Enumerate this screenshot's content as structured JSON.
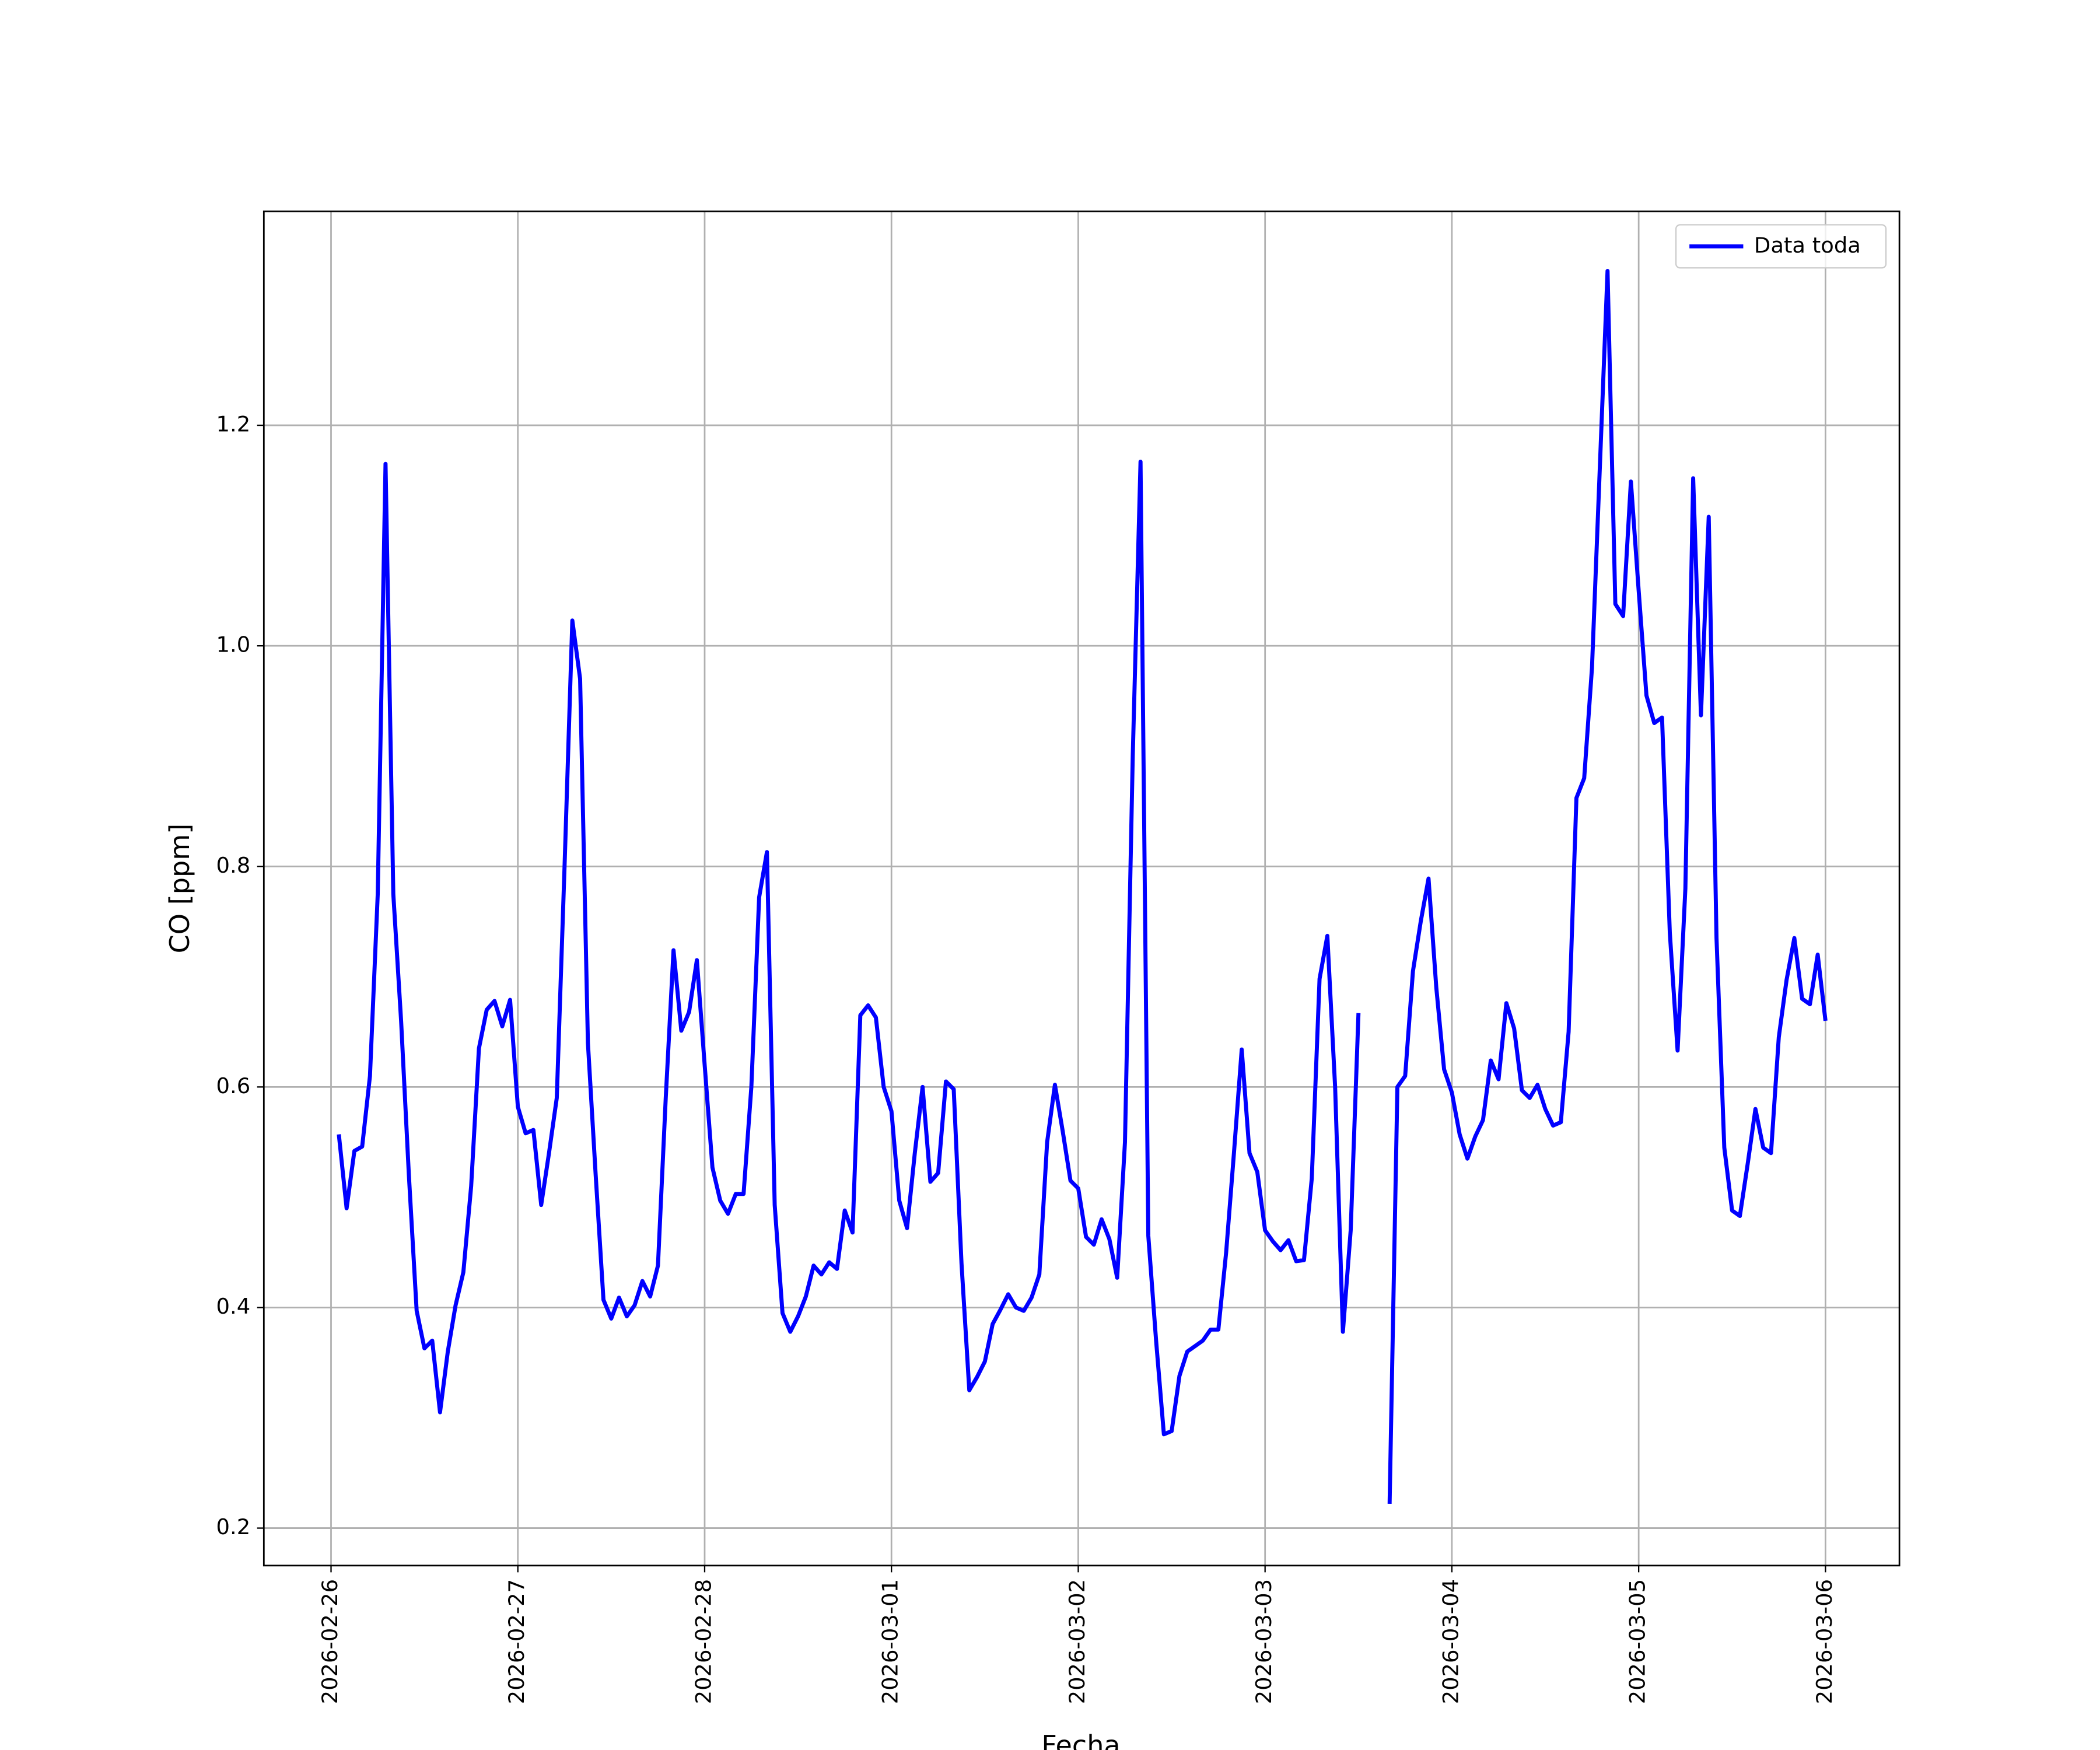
{
  "chart_data": {
    "type": "line",
    "xlabel": "Fecha",
    "ylabel": "CO [ppm]",
    "x": [
      "2026-02-26 01:00",
      "2026-02-26 02:00",
      "2026-02-26 03:00",
      "2026-02-26 04:00",
      "2026-02-26 05:00",
      "2026-02-26 06:00",
      "2026-02-26 07:00",
      "2026-02-26 08:00",
      "2026-02-26 09:00",
      "2026-02-26 10:00",
      "2026-02-26 11:00",
      "2026-02-26 12:00",
      "2026-02-26 13:00",
      "2026-02-26 14:00",
      "2026-02-26 15:00",
      "2026-02-26 16:00",
      "2026-02-26 17:00",
      "2026-02-26 18:00",
      "2026-02-26 19:00",
      "2026-02-26 20:00",
      "2026-02-26 21:00",
      "2026-02-26 22:00",
      "2026-02-26 23:00",
      "2026-02-27 00:00",
      "2026-02-27 01:00",
      "2026-02-27 02:00",
      "2026-02-27 03:00",
      "2026-02-27 04:00",
      "2026-02-27 05:00",
      "2026-02-27 06:00",
      "2026-02-27 07:00",
      "2026-02-27 08:00",
      "2026-02-27 09:00",
      "2026-02-27 10:00",
      "2026-02-27 11:00",
      "2026-02-27 12:00",
      "2026-02-27 13:00",
      "2026-02-27 14:00",
      "2026-02-27 15:00",
      "2026-02-27 16:00",
      "2026-02-27 17:00",
      "2026-02-27 18:00",
      "2026-02-27 19:00",
      "2026-02-27 20:00",
      "2026-02-27 21:00",
      "2026-02-27 22:00",
      "2026-02-27 23:00",
      "2026-02-28 00:00",
      "2026-02-28 01:00",
      "2026-02-28 02:00",
      "2026-02-28 03:00",
      "2026-02-28 04:00",
      "2026-02-28 05:00",
      "2026-02-28 06:00",
      "2026-02-28 07:00",
      "2026-02-28 08:00",
      "2026-02-28 09:00",
      "2026-02-28 10:00",
      "2026-02-28 11:00",
      "2026-02-28 12:00",
      "2026-02-28 13:00",
      "2026-02-28 14:00",
      "2026-02-28 15:00",
      "2026-02-28 16:00",
      "2026-02-28 17:00",
      "2026-02-28 18:00",
      "2026-02-28 19:00",
      "2026-02-28 20:00",
      "2026-02-28 21:00",
      "2026-02-28 22:00",
      "2026-02-28 23:00",
      "2026-03-01 00:00",
      "2026-03-01 01:00",
      "2026-03-01 02:00",
      "2026-03-01 03:00",
      "2026-03-01 04:00",
      "2026-03-01 05:00",
      "2026-03-01 06:00",
      "2026-03-01 07:00",
      "2026-03-01 08:00",
      "2026-03-01 09:00",
      "2026-03-01 10:00",
      "2026-03-01 11:00",
      "2026-03-01 12:00",
      "2026-03-01 13:00",
      "2026-03-01 14:00",
      "2026-03-01 15:00",
      "2026-03-01 16:00",
      "2026-03-01 17:00",
      "2026-03-01 18:00",
      "2026-03-01 19:00",
      "2026-03-01 20:00",
      "2026-03-01 21:00",
      "2026-03-01 22:00",
      "2026-03-01 23:00",
      "2026-03-02 00:00",
      "2026-03-02 01:00",
      "2026-03-02 02:00",
      "2026-03-02 03:00",
      "2026-03-02 04:00",
      "2026-03-02 05:00",
      "2026-03-02 06:00",
      "2026-03-02 07:00",
      "2026-03-02 08:00",
      "2026-03-02 09:00",
      "2026-03-02 10:00",
      "2026-03-02 11:00",
      "2026-03-02 12:00",
      "2026-03-02 13:00",
      "2026-03-02 14:00",
      "2026-03-02 15:00",
      "2026-03-02 16:00",
      "2026-03-02 17:00",
      "2026-03-02 18:00",
      "2026-03-02 19:00",
      "2026-03-02 20:00",
      "2026-03-02 21:00",
      "2026-03-02 22:00",
      "2026-03-02 23:00",
      "2026-03-03 00:00",
      "2026-03-03 01:00",
      "2026-03-03 02:00",
      "2026-03-03 03:00",
      "2026-03-03 04:00",
      "2026-03-03 05:00",
      "2026-03-03 06:00",
      "2026-03-03 07:00",
      "2026-03-03 08:00",
      "2026-03-03 09:00",
      "2026-03-03 10:00",
      "2026-03-03 11:00",
      "2026-03-03 12:00",
      "2026-03-03 13:00",
      "2026-03-03 14:00",
      "2026-03-03 15:00",
      "2026-03-03 16:00",
      "2026-03-03 17:00",
      "2026-03-03 18:00",
      "2026-03-03 19:00",
      "2026-03-03 20:00",
      "2026-03-03 21:00",
      "2026-03-03 22:00",
      "2026-03-03 23:00",
      "2026-03-04 00:00",
      "2026-03-04 01:00",
      "2026-03-04 02:00",
      "2026-03-04 03:00",
      "2026-03-04 04:00",
      "2026-03-04 05:00",
      "2026-03-04 06:00",
      "2026-03-04 07:00",
      "2026-03-04 08:00",
      "2026-03-04 09:00",
      "2026-03-04 10:00",
      "2026-03-04 11:00",
      "2026-03-04 12:00",
      "2026-03-04 13:00",
      "2026-03-04 14:00",
      "2026-03-04 15:00",
      "2026-03-04 16:00",
      "2026-03-04 17:00",
      "2026-03-04 18:00",
      "2026-03-04 19:00",
      "2026-03-04 20:00",
      "2026-03-04 21:00",
      "2026-03-04 22:00",
      "2026-03-04 23:00",
      "2026-03-05 00:00",
      "2026-03-05 01:00",
      "2026-03-05 02:00",
      "2026-03-05 03:00",
      "2026-03-05 04:00",
      "2026-03-05 05:00",
      "2026-03-05 06:00",
      "2026-03-05 07:00",
      "2026-03-05 08:00",
      "2026-03-05 09:00",
      "2026-03-05 10:00",
      "2026-03-05 11:00",
      "2026-03-05 12:00",
      "2026-03-05 13:00",
      "2026-03-05 14:00",
      "2026-03-05 15:00",
      "2026-03-05 16:00",
      "2026-03-05 17:00",
      "2026-03-05 18:00",
      "2026-03-05 19:00",
      "2026-03-05 20:00",
      "2026-03-05 21:00",
      "2026-03-05 22:00",
      "2026-03-05 23:00",
      "2026-03-06 00:00"
    ],
    "series": [
      {
        "name": "Data toda",
        "color": "#0000ff",
        "values": [
          0.557,
          0.49,
          0.542,
          0.546,
          0.61,
          0.775,
          1.165,
          0.775,
          0.66,
          0.52,
          0.397,
          0.363,
          0.37,
          0.305,
          0.36,
          0.402,
          0.432,
          0.51,
          0.635,
          0.67,
          0.678,
          0.655,
          0.679,
          0.582,
          0.558,
          0.561,
          0.493,
          0.54,
          0.59,
          0.8,
          1.023,
          0.97,
          0.64,
          0.52,
          0.407,
          0.39,
          0.409,
          0.392,
          0.402,
          0.424,
          0.41,
          0.438,
          0.59,
          0.724,
          0.651,
          0.668,
          0.715,
          0.62,
          0.527,
          0.497,
          0.485,
          0.503,
          0.503,
          0.6,
          0.772,
          0.813,
          0.493,
          0.395,
          0.378,
          0.392,
          0.41,
          0.438,
          0.43,
          0.441,
          0.435,
          0.488,
          0.468,
          0.665,
          0.674,
          0.663,
          0.6,
          0.578,
          0.497,
          0.472,
          0.54,
          0.6,
          0.514,
          0.522,
          0.605,
          0.598,
          0.44,
          0.325,
          0.337,
          0.351,
          0.385,
          0.398,
          0.412,
          0.4,
          0.397,
          0.409,
          0.43,
          0.55,
          0.602,
          0.56,
          0.515,
          0.508,
          0.464,
          0.457,
          0.48,
          0.462,
          0.427,
          0.55,
          0.9,
          1.167,
          0.465,
          0.37,
          0.285,
          0.288,
          0.338,
          0.36,
          0.365,
          0.37,
          0.38,
          0.38,
          0.45,
          0.54,
          0.634,
          0.54,
          0.523,
          0.47,
          0.46,
          0.452,
          0.461,
          0.442,
          0.443,
          0.517,
          0.698,
          0.737,
          0.6,
          0.378,
          0.47,
          0.667,
          null,
          null,
          null,
          0.222,
          0.6,
          0.61,
          0.705,
          0.75,
          0.789,
          0.69,
          0.616,
          0.595,
          0.557,
          0.535,
          0.555,
          0.57,
          0.624,
          0.607,
          0.676,
          0.653,
          0.597,
          0.59,
          0.602,
          0.58,
          0.565,
          0.568,
          0.65,
          0.862,
          0.88,
          0.98,
          1.16,
          1.34,
          1.038,
          1.027,
          1.149,
          1.05,
          0.955,
          0.93,
          0.935,
          0.74,
          0.633,
          0.78,
          1.152,
          0.937,
          1.117,
          0.735,
          0.545,
          0.488,
          0.483,
          0.53,
          0.58,
          0.545,
          0.54,
          0.645,
          0.697,
          0.735,
          0.68,
          0.675,
          0.72,
          0.66
        ]
      }
    ],
    "xlim": [
      "2026-02-25 15:22",
      "2026-03-06 09:30"
    ],
    "xticks": [
      "2026-02-26",
      "2026-02-27",
      "2026-02-28",
      "2026-03-01",
      "2026-03-02",
      "2026-03-03",
      "2026-03-04",
      "2026-03-05",
      "2026-03-06"
    ],
    "ylim": [
      0.166,
      1.394
    ],
    "yticks": [
      0.2,
      0.4,
      0.6,
      0.8,
      {
        "value": 1,
        "label": "1.0"
      },
      1.2
    ],
    "grid": true,
    "legend": "upper right"
  }
}
